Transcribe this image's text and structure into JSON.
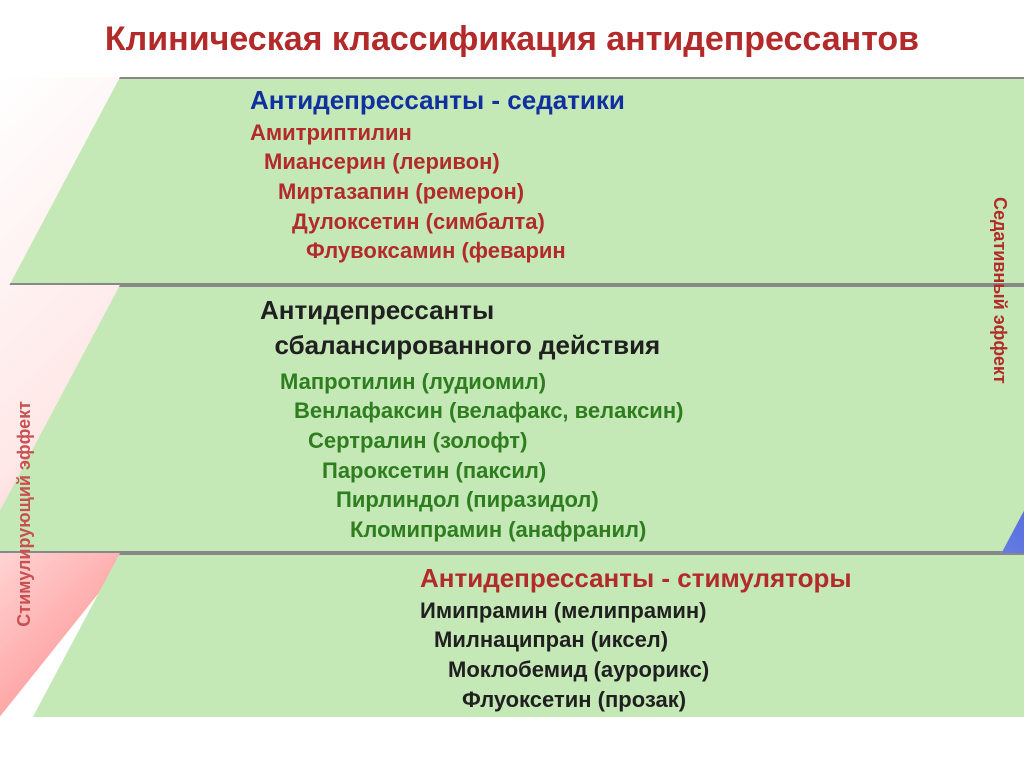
{
  "title": "Клиническая классификация антидепрессантов",
  "title_color": "#b22a2a",
  "side_labels": {
    "left": "Стимулирующий эффект",
    "left_color": "#c85050",
    "right": "Седативный эффект",
    "right_color": "#b22a2a"
  },
  "bands": {
    "fill_color": "#c5e8b7",
    "border_color": "#888888"
  },
  "groups": [
    {
      "title": "Антидепрессанты - седатики",
      "title_color": "#1030a0",
      "drug_color": "#b22a2a",
      "drugs": [
        "Амитриптилин",
        "Миансерин (леривон)",
        "Миртазапин (ремерон)",
        "Дулоксетин (симбалта)",
        "Флувоксамин (феварин"
      ]
    },
    {
      "title": "Антидепрессанты\n  сбалансированного действия",
      "title_color": "#202020",
      "drug_color": "#2e7d1e",
      "drugs": [
        "Мапротилин (лудиомил)",
        "Венлафаксин (велафакс, велаксин)",
        "Сертралин (золофт)",
        "Пароксетин (паксил)",
        "Пирлиндол (пиразидол)",
        "Кломипрамин (анафранил)"
      ]
    },
    {
      "title": "Антидепрессанты - стимуляторы",
      "title_color": "#b22a2a",
      "drug_color": "#202020",
      "drugs": [
        "Имипрамин (мелипрамин)",
        "Милнаципран (иксел)",
        "Моклобемид (аурорикс)",
        "Флуоксетин (прозак)"
      ]
    }
  ],
  "background": {
    "left_gradient": [
      "#ffffff",
      "#e03030"
    ],
    "right_gradient": [
      "#2b3fbf",
      "#ffffff"
    ]
  }
}
